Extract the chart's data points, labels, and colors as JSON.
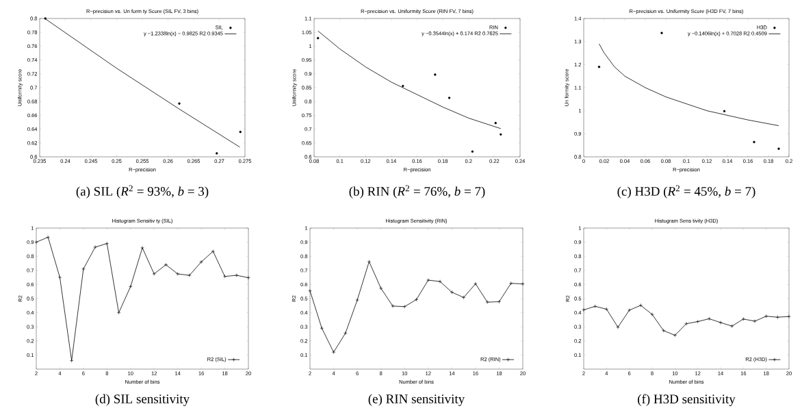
{
  "chart_data": [
    {
      "type": "scatter",
      "title": "R−precision vs. Un form ty Score (SIL FV, 3 bins)",
      "xlabel": "R−precision",
      "ylabel": "Uniformity score",
      "legend": "top right",
      "series": [
        {
          "name": "SIL",
          "type": "scatter",
          "marker": "circle",
          "color": "#000000",
          "x": [
            0.2361,
            0.2622,
            0.2695,
            0.2741
          ],
          "values": [
            0.8,
            0.677,
            0.605,
            0.636
          ]
        },
        {
          "name": "y −1.2338ln(x) − 0.9825 R2 0.9345",
          "type": "line",
          "marker": "none",
          "color": "#000000",
          "x": [
            0.236,
            0.25,
            0.262,
            0.274
          ],
          "values": [
            0.8,
            0.728,
            0.67,
            0.614
          ]
        }
      ],
      "xlim": [
        0.235,
        0.275
      ],
      "xticks": [
        0.235,
        0.24,
        0.245,
        0.25,
        0.255,
        0.26,
        0.265,
        0.27,
        0.275
      ],
      "ylim": [
        0.6,
        0.8
      ],
      "yticks": [
        0.6,
        0.62,
        0.64,
        0.66,
        0.68,
        0.7,
        0.72,
        0.74,
        0.76,
        0.78,
        0.8
      ],
      "annotations": [
        "(a) SIL (*R*$^{2}$ = 93%, *b* = 3)"
      ]
    },
    {
      "type": "scatter",
      "title": "R−precision vs. Uniformity Score (RIN FV, 7 bins)",
      "xlabel": "R−precision",
      "ylabel": "Uniformity score",
      "legend": "top right",
      "series": [
        {
          "name": "RIN",
          "type": "scatter",
          "marker": "circle",
          "color": "#000000",
          "x": [
            0.083,
            0.149,
            0.174,
            0.185,
            0.203,
            0.221,
            0.225
          ],
          "values": [
            1.029,
            0.856,
            0.897,
            0.813,
            0.619,
            0.722,
            0.681
          ]
        },
        {
          "name": "y −0.3544ln(x) + 0.174 R2 0.7625",
          "type": "line",
          "marker": "none",
          "color": "#000000",
          "x": [
            0.083,
            0.1,
            0.12,
            0.14,
            0.16,
            0.18,
            0.2,
            0.225
          ],
          "values": [
            1.055,
            0.99,
            0.925,
            0.87,
            0.825,
            0.78,
            0.74,
            0.702
          ]
        }
      ],
      "xlim": [
        0.08,
        0.24
      ],
      "xticks": [
        0.08,
        0.1,
        0.12,
        0.14,
        0.16,
        0.18,
        0.2,
        0.22,
        0.24
      ],
      "ylim": [
        0.6,
        1.1
      ],
      "yticks": [
        0.6,
        0.65,
        0.7,
        0.75,
        0.8,
        0.85,
        0.9,
        0.95,
        1,
        1.05,
        1.1
      ],
      "annotations": [
        "(b) RIN (*R*$^{2}$ = 76%, *b* = 7)"
      ]
    },
    {
      "type": "scatter",
      "title": "R−precision vs. Uniformity Score (H3D FV, 7 bins)",
      "xlabel": "R−precision",
      "ylabel": "Un formity score",
      "legend": "top right",
      "series": [
        {
          "name": "H3D",
          "type": "scatter",
          "marker": "circle",
          "color": "#000000",
          "x": [
            0.015,
            0.076,
            0.137,
            0.166,
            0.19
          ],
          "values": [
            1.19,
            1.337,
            0.998,
            0.864,
            0.835
          ]
        },
        {
          "name": "y −0.1406ln(x) + 0.7028 R2 0.4509",
          "type": "line",
          "marker": "none",
          "color": "#000000",
          "x": [
            0.015,
            0.02,
            0.03,
            0.04,
            0.06,
            0.08,
            0.1,
            0.12,
            0.14,
            0.16,
            0.19
          ],
          "values": [
            1.29,
            1.25,
            1.19,
            1.15,
            1.1,
            1.06,
            1.03,
            1.0,
            0.98,
            0.96,
            0.935
          ]
        }
      ],
      "xlim": [
        0,
        0.2
      ],
      "xticks": [
        0,
        0.02,
        0.04,
        0.06,
        0.08,
        0.1,
        0.12,
        0.14,
        0.16,
        0.18,
        0.2
      ],
      "ylim": [
        0.8,
        1.4
      ],
      "yticks": [
        0.8,
        0.9,
        1,
        1.1,
        1.2,
        1.3,
        1.4
      ],
      "annotations": [
        "(c) H3D (*R*$^{2}$ = 45%, *b* = 7)"
      ]
    },
    {
      "type": "line",
      "title": "Histogram Sensitiv ty (SIL)",
      "xlabel": "Number of bins",
      "ylabel": "R2",
      "marker": "cross",
      "legend": "bottom right",
      "x": [
        2,
        3,
        4,
        5,
        6,
        7,
        8,
        9,
        10,
        11,
        12,
        13,
        14,
        15,
        16,
        17,
        18,
        19,
        20
      ],
      "series": [
        {
          "name": "R2 (SIL)",
          "color": "#000000",
          "values": [
            0.9,
            0.935,
            0.65,
            0.06,
            0.71,
            0.865,
            0.89,
            0.4,
            0.585,
            0.86,
            0.675,
            0.74,
            0.675,
            0.665,
            0.76,
            0.835,
            0.657,
            0.665,
            0.648
          ]
        }
      ],
      "xlim": [
        2,
        20
      ],
      "xticks": [
        2,
        4,
        6,
        8,
        10,
        12,
        14,
        16,
        18,
        20
      ],
      "ylim": [
        0,
        1
      ],
      "yticks": [
        0.1,
        0.2,
        0.3,
        0.4,
        0.5,
        0.6,
        0.7,
        0.8,
        0.9,
        1
      ],
      "annotations": [
        "(d) SIL sensitivity"
      ]
    },
    {
      "type": "line",
      "title": "Histogram Sensitivity (RIN)",
      "xlabel": "Number of bins",
      "ylabel": "R2",
      "marker": "cross",
      "legend": "bottom right",
      "x": [
        2,
        3,
        4,
        5,
        6,
        7,
        8,
        9,
        10,
        11,
        12,
        13,
        14,
        15,
        16,
        17,
        18,
        19,
        20
      ],
      "series": [
        {
          "name": "R2 (RIN)",
          "color": "#000000",
          "values": [
            0.555,
            0.29,
            0.12,
            0.255,
            0.49,
            0.762,
            0.573,
            0.447,
            0.443,
            0.493,
            0.631,
            0.621,
            0.545,
            0.508,
            0.605,
            0.475,
            0.478,
            0.608,
            0.604
          ]
        }
      ],
      "xlim": [
        2,
        20
      ],
      "xticks": [
        2,
        4,
        6,
        8,
        10,
        12,
        14,
        16,
        18,
        20
      ],
      "ylim": [
        0,
        1
      ],
      "yticks": [
        0.1,
        0.2,
        0.3,
        0.4,
        0.5,
        0.6,
        0.7,
        0.8,
        0.9,
        1
      ],
      "annotations": [
        "(e) RIN sensitivity"
      ]
    },
    {
      "type": "line",
      "title": "Histogram Sens tivity (H3D)",
      "xlabel": "Number of bins",
      "ylabel": "R2",
      "marker": "cross",
      "legend": "bottom right",
      "x": [
        2,
        3,
        4,
        5,
        6,
        7,
        8,
        9,
        10,
        11,
        12,
        13,
        14,
        15,
        16,
        17,
        18,
        19,
        20
      ],
      "series": [
        {
          "name": "R2 (H3D)",
          "color": "#000000",
          "values": [
            0.42,
            0.445,
            0.425,
            0.297,
            0.418,
            0.452,
            0.388,
            0.273,
            0.24,
            0.322,
            0.337,
            0.357,
            0.33,
            0.305,
            0.355,
            0.34,
            0.375,
            0.368,
            0.373
          ]
        }
      ],
      "xlim": [
        2,
        20
      ],
      "xticks": [
        2,
        4,
        6,
        8,
        10,
        12,
        14,
        16,
        18,
        20
      ],
      "ylim": [
        0,
        1
      ],
      "yticks": [
        0.1,
        0.2,
        0.3,
        0.4,
        0.5,
        0.6,
        0.7,
        0.8,
        0.9,
        1
      ],
      "annotations": [
        "(f) H3D sensitivity"
      ]
    }
  ]
}
